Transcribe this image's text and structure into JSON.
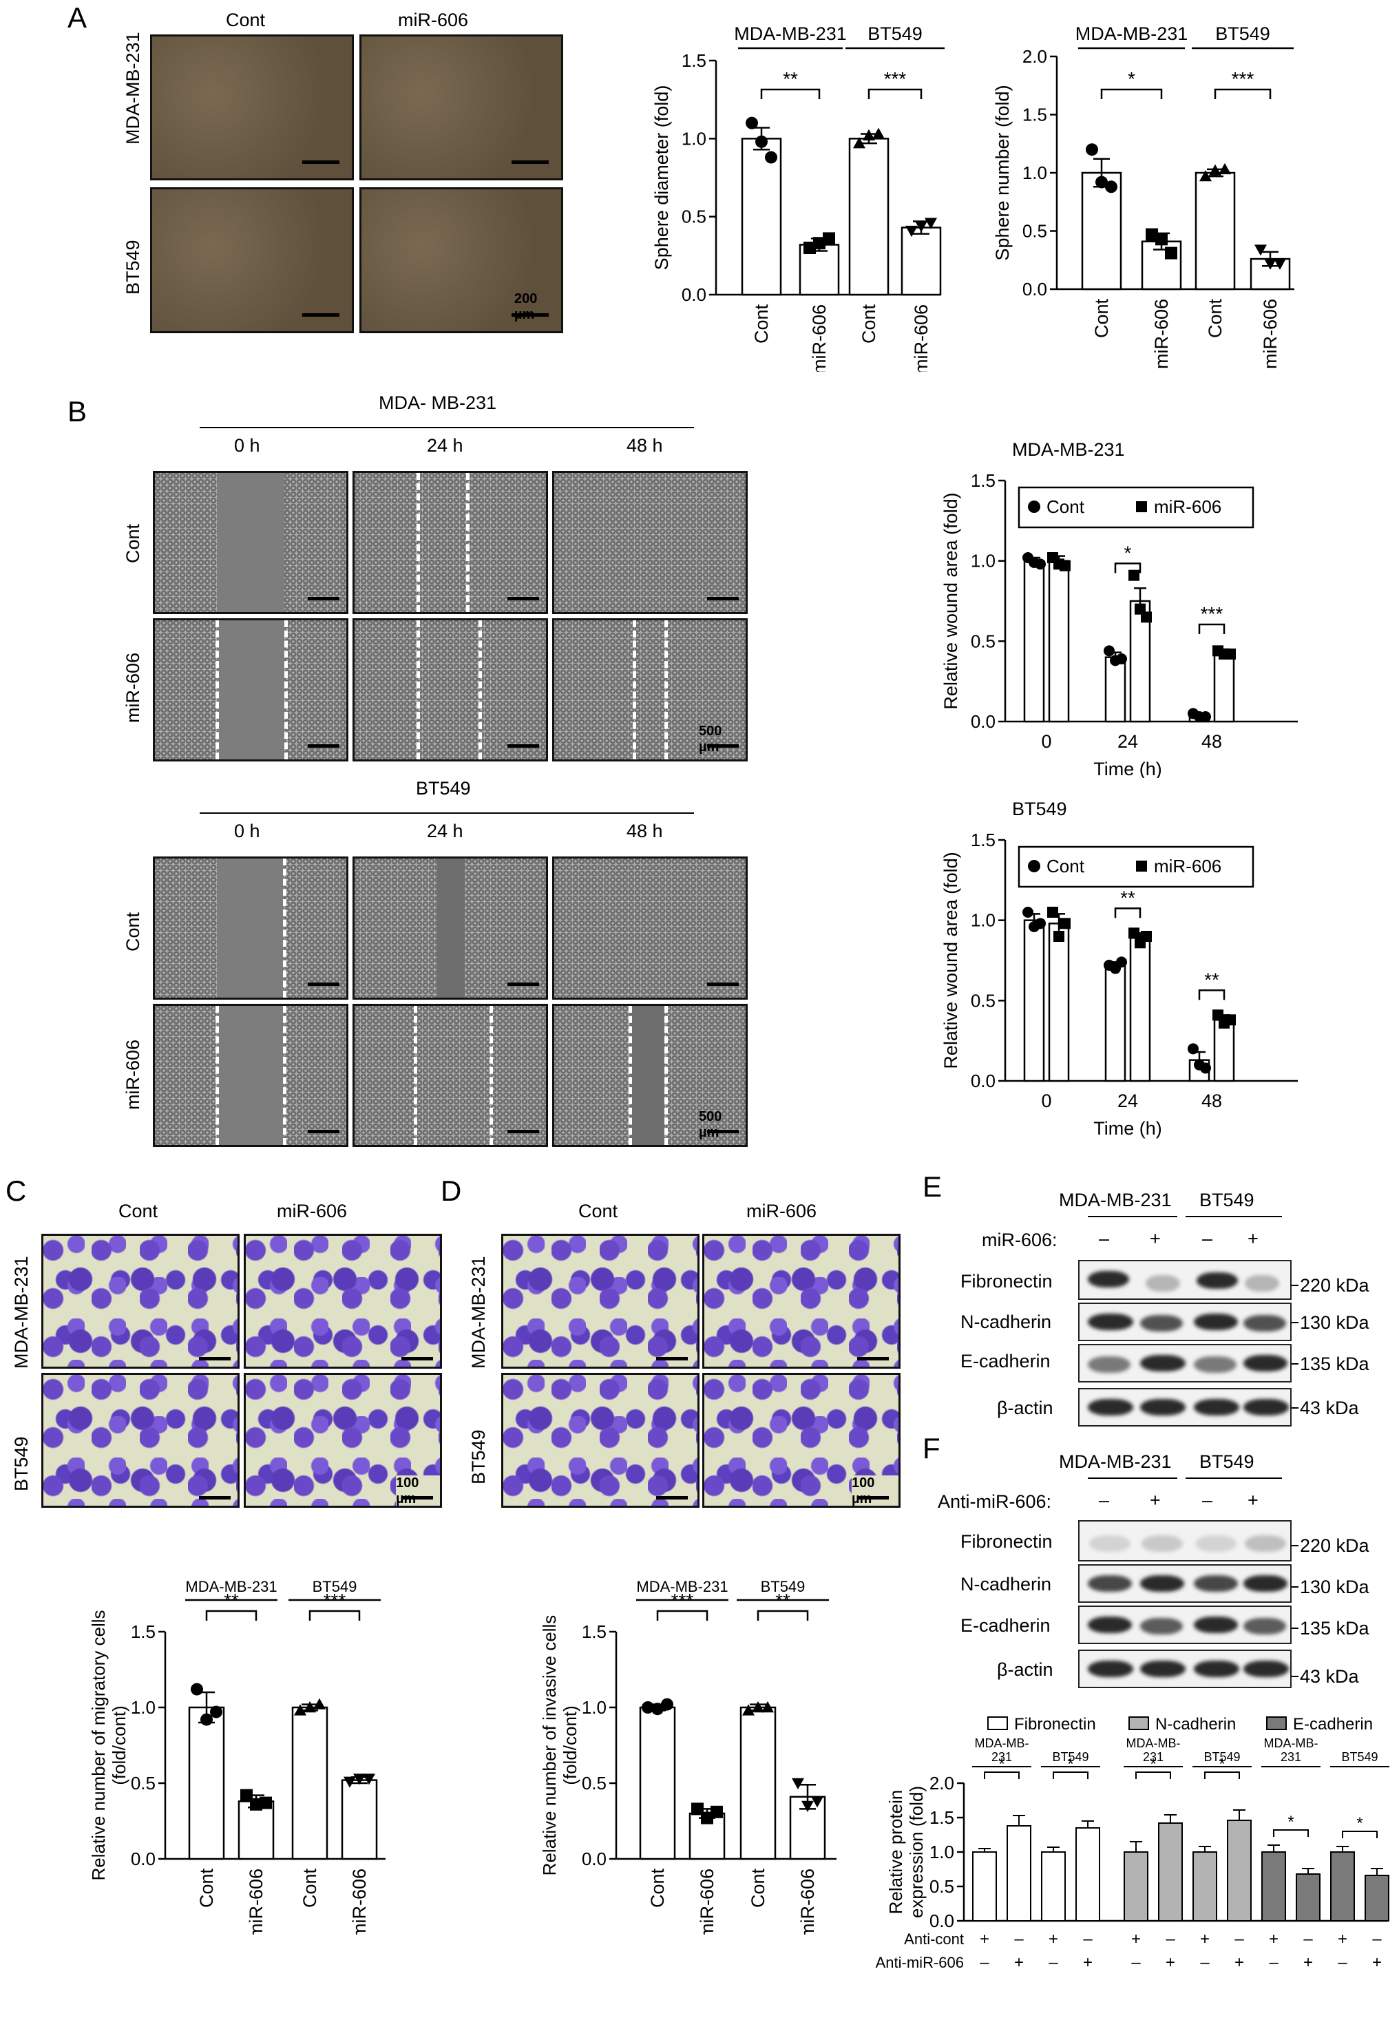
{
  "panels": {
    "A": "A",
    "B": "B",
    "C": "C",
    "D": "D",
    "E": "E",
    "F": "F"
  },
  "panelA": {
    "col_cont": "Cont",
    "col_mir": "miR-606",
    "row1": "MDA-MB-231",
    "row2": "BT549",
    "scale": "200 µm"
  },
  "panelB": {
    "mda_title": "MDA- MB-231",
    "bt_title": "BT549",
    "t0": "0 h",
    "t24": "24 h",
    "t48": "48 h",
    "row_cont": "Cont",
    "row_mir": "miR-606",
    "scale": "500 µm"
  },
  "panelC": {
    "col_cont": "Cont",
    "col_mir": "miR-606",
    "row1": "MDA-MB-231",
    "row2": "BT549",
    "scale": "100 µm"
  },
  "panelD": {
    "col_cont": "Cont",
    "col_mir": "miR-606",
    "row1": "MDA-MB-231",
    "row2": "BT549",
    "scale": "100 µm"
  },
  "panelE": {
    "grp1": "MDA-MB-231",
    "grp2": "BT549",
    "treat": "miR-606:",
    "signs": [
      "–",
      "+",
      "–",
      "+"
    ],
    "proteins": [
      "Fibronectin",
      "N-cadherin",
      "E-cadherin",
      "β-actin"
    ],
    "kda": [
      "220 kDa",
      "130 kDa",
      "135 kDa",
      "43 kDa"
    ]
  },
  "panelF": {
    "grp1": "MDA-MB-231",
    "grp2": "BT549",
    "treat": "Anti-miR-606:",
    "signs": [
      "–",
      "+",
      "–",
      "+"
    ],
    "proteins": [
      "Fibronectin",
      "N-cadherin",
      "E-cadherin",
      "β-actin"
    ],
    "kda": [
      "220 kDa",
      "130 kDa",
      "135 kDa",
      "43 kDa"
    ]
  },
  "chart_data": [
    {
      "id": "A_diameter",
      "type": "bar",
      "ylabel": "Sphere diameter (fold)",
      "ylim": [
        0,
        1.5
      ],
      "yticks": [
        "0.0",
        "0.5",
        "1.0",
        "1.5"
      ],
      "groups": [
        "MDA-MB-231",
        "BT549"
      ],
      "categories": [
        "Cont",
        "miR-606",
        "Cont",
        "miR-606"
      ],
      "values": [
        1.0,
        0.32,
        1.0,
        0.43
      ],
      "errors": [
        0.07,
        0.04,
        0.03,
        0.04
      ],
      "points": [
        [
          1.1,
          0.98,
          0.88
        ],
        [
          0.3,
          0.33,
          0.36
        ],
        [
          0.97,
          1.02,
          1.03
        ],
        [
          0.41,
          0.44,
          0.46
        ]
      ],
      "markers": [
        "circle",
        "square",
        "triangle",
        "triangle-down"
      ],
      "sig": [
        "**",
        "***"
      ]
    },
    {
      "id": "A_number",
      "type": "bar",
      "ylabel": "Sphere number (fold)",
      "ylim": [
        0,
        2.0
      ],
      "yticks": [
        "0.0",
        "0.5",
        "1.0",
        "1.5",
        "2.0"
      ],
      "groups": [
        "MDA-MB-231",
        "BT549"
      ],
      "categories": [
        "Cont",
        "miR-606",
        "Cont",
        "miR-606"
      ],
      "values": [
        1.0,
        0.41,
        1.0,
        0.26
      ],
      "errors": [
        0.12,
        0.07,
        0.03,
        0.06
      ],
      "points": [
        [
          1.2,
          0.92,
          0.88
        ],
        [
          0.47,
          0.43,
          0.31
        ],
        [
          0.97,
          1.02,
          1.03
        ],
        [
          0.34,
          0.22,
          0.22
        ]
      ],
      "markers": [
        "circle",
        "square",
        "triangle",
        "triangle-down"
      ],
      "sig": [
        "*",
        "***"
      ]
    },
    {
      "id": "B_mda",
      "type": "bar",
      "title": "MDA-MB-231",
      "xlabel": "Time (h)",
      "ylabel": "Relative wound area (fold)",
      "ylim": [
        0,
        1.5
      ],
      "yticks": [
        "0.0",
        "0.5",
        "1.0",
        "1.5"
      ],
      "categories": [
        "0",
        "24",
        "48"
      ],
      "legend": [
        "Cont",
        "miR-606"
      ],
      "series": [
        {
          "name": "Cont",
          "values": [
            1.0,
            0.4,
            0.04
          ],
          "errors": [
            0.02,
            0.03,
            0.01
          ],
          "points": [
            [
              1.02,
              0.99,
              0.98
            ],
            [
              0.44,
              0.38,
              0.39
            ],
            [
              0.05,
              0.03,
              0.03
            ]
          ]
        },
        {
          "name": "miR-606",
          "values": [
            1.0,
            0.75,
            0.43
          ],
          "errors": [
            0.03,
            0.08,
            0.02
          ],
          "points": [
            [
              1.02,
              0.98,
              0.97
            ],
            [
              0.91,
              0.7,
              0.65
            ],
            [
              0.44,
              0.42,
              0.42
            ]
          ]
        }
      ],
      "sig": [
        "*",
        "***"
      ]
    },
    {
      "id": "B_bt",
      "type": "bar",
      "title": "BT549",
      "xlabel": "Time (h)",
      "ylabel": "Relative wound area (fold)",
      "ylim": [
        0,
        1.5
      ],
      "yticks": [
        "0.0",
        "0.5",
        "1.0",
        "1.5"
      ],
      "categories": [
        "0",
        "24",
        "48"
      ],
      "legend": [
        "Cont",
        "miR-606"
      ],
      "series": [
        {
          "name": "Cont",
          "values": [
            1.0,
            0.72,
            0.13
          ],
          "errors": [
            0.04,
            0.02,
            0.05
          ],
          "points": [
            [
              1.05,
              0.96,
              0.98
            ],
            [
              0.72,
              0.7,
              0.74
            ],
            [
              0.2,
              0.1,
              0.08
            ]
          ]
        },
        {
          "name": "miR-606",
          "values": [
            0.98,
            0.89,
            0.38
          ],
          "errors": [
            0.06,
            0.03,
            0.03
          ],
          "points": [
            [
              1.05,
              0.9,
              0.98
            ],
            [
              0.92,
              0.86,
              0.9
            ],
            [
              0.41,
              0.36,
              0.38
            ]
          ]
        }
      ],
      "sig": [
        "**",
        "**"
      ]
    },
    {
      "id": "C_migr",
      "type": "bar",
      "ylabel": "Relative number of migratory cells (fold/cont)",
      "ylim": [
        0,
        1.5
      ],
      "yticks": [
        "0.0",
        "0.5",
        "1.0",
        "1.5"
      ],
      "groups": [
        "MDA-MB-231",
        "BT549"
      ],
      "categories": [
        "Cont",
        "miR-606",
        "Cont",
        "miR-606"
      ],
      "values": [
        1.0,
        0.38,
        1.0,
        0.52
      ],
      "errors": [
        0.1,
        0.04,
        0.02,
        0.02
      ],
      "points": [
        [
          1.12,
          0.92,
          0.97
        ],
        [
          0.42,
          0.36,
          0.37
        ],
        [
          0.98,
          1.0,
          1.02
        ],
        [
          0.51,
          0.53,
          0.53
        ]
      ],
      "markers": [
        "circle",
        "square",
        "triangle",
        "triangle-down"
      ],
      "sig": [
        "**",
        "***"
      ]
    },
    {
      "id": "D_inv",
      "type": "bar",
      "ylabel": "Relative number of invasive cells (fold/cont)",
      "ylim": [
        0,
        1.5
      ],
      "yticks": [
        "0.0",
        "0.5",
        "1.0",
        "1.5"
      ],
      "groups": [
        "MDA-MB-231",
        "BT549"
      ],
      "categories": [
        "Cont",
        "miR-606",
        "Cont",
        "miR-606"
      ],
      "values": [
        1.0,
        0.3,
        1.0,
        0.41
      ],
      "errors": [
        0.02,
        0.03,
        0.02,
        0.08
      ],
      "points": [
        [
          1.0,
          0.99,
          1.02
        ],
        [
          0.33,
          0.27,
          0.31
        ],
        [
          0.98,
          1.0,
          1.0
        ],
        [
          0.5,
          0.35,
          0.38
        ]
      ],
      "markers": [
        "circle",
        "square",
        "triangle",
        "triangle-down"
      ],
      "sig": [
        "***",
        "**"
      ]
    },
    {
      "id": "F_protein",
      "type": "bar",
      "ylabel": "Relative protein expression (fold)",
      "ylim": [
        0,
        2.0
      ],
      "yticks": [
        "0.0",
        "0.5",
        "1.0",
        "1.5",
        "2.0"
      ],
      "legend": [
        "Fibronectin",
        "N-cadherin",
        "E-cadherin"
      ],
      "legend_colors": [
        "#ffffff",
        "#b3b3b3",
        "#7a7a7a"
      ],
      "subgroups": [
        "MDA-MB-231",
        "BT549"
      ],
      "row_labels": [
        "Anti-cont",
        "Anti-miR-606"
      ],
      "row_signs": [
        [
          "+",
          "–",
          "+",
          "–"
        ],
        [
          "–",
          "+",
          "–",
          "+"
        ]
      ],
      "series": [
        {
          "name": "Fibronectin",
          "values": [
            1.0,
            1.38,
            1.0,
            1.35
          ],
          "errors": [
            0.05,
            0.15,
            0.07,
            0.1
          ]
        },
        {
          "name": "N-cadherin",
          "values": [
            1.0,
            1.42,
            1.0,
            1.46
          ],
          "errors": [
            0.15,
            0.12,
            0.08,
            0.15
          ]
        },
        {
          "name": "E-cadherin",
          "values": [
            1.0,
            0.68,
            1.0,
            0.66
          ],
          "errors": [
            0.1,
            0.08,
            0.08,
            0.1
          ]
        }
      ],
      "sig": [
        "*",
        "*",
        "*",
        "*",
        "*",
        "*"
      ]
    }
  ]
}
